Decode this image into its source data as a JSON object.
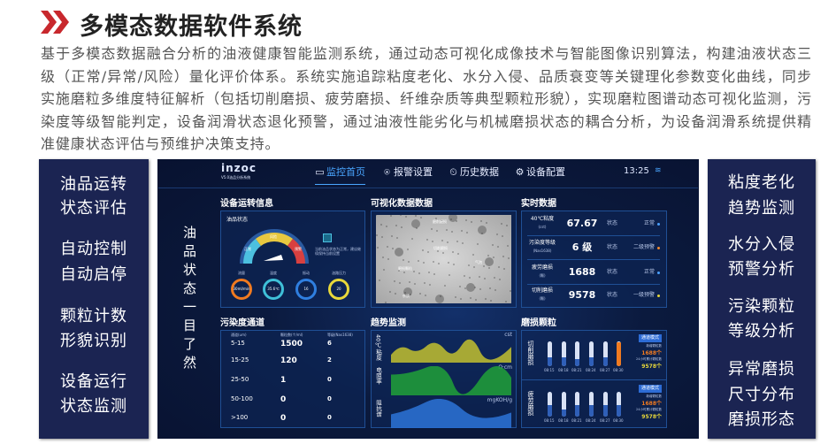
{
  "header": {
    "title": "多模态数据软件系统",
    "chevron_color": "#c8282d"
  },
  "description": "基于多模态数据融合分析的油液健康智能监测系统，通过动态可视化成像技术与智能图像识别算法，构建油液状态三级（正常/异常/风险）量化评价体系。系统实施追踪粘度老化、水分入侵、品质衰变等关键理化参数变化曲线，同步实施磨粒多维度特征解析（包括切削磨损、疲劳磨损、纤维杂质等典型颗粒形貌），实现磨粒图谱动态可视化监测，污染度等级智能判定，设备润滑状态退化预警，通过油液性能劣化与机械磨损状态的耦合分析，为设备润滑系统提供精准健康状态评估与预维护决策支持。",
  "left_features": [
    [
      "油品运转",
      "状态评估"
    ],
    [
      "自动控制",
      "自动启停"
    ],
    [
      "颗粒计数",
      "形貌识别"
    ],
    [
      "设备运行",
      "状态监测"
    ]
  ],
  "right_features": [
    [
      "粘度老化",
      "趋势监测"
    ],
    [
      "水分入侵",
      "预警分析"
    ],
    [
      "污染颗粒",
      "等级分析"
    ],
    [
      "异常磨损",
      "尺寸分布",
      "磨损形态"
    ]
  ],
  "dashboard": {
    "logo": "inzoc",
    "logo_sub": "V5.0油品分析系统",
    "nav": [
      "监控首页",
      "报警设置",
      "历史数据",
      "设备配置"
    ],
    "time": "13:25",
    "slogan": "油品状态一目了然",
    "equipment": {
      "title": "设备运转信息",
      "oil_status": "油品状态",
      "gauge_labels": [
        "正常",
        "风险",
        "预警"
      ],
      "note": "当前油品状态为正常，建议继续保持当前设置",
      "meters": [
        {
          "label": "流量",
          "value": "30ml/min",
          "color": "#f07a20"
        },
        {
          "label": "温度",
          "value": "35.6℃",
          "color": "#3fc0d8"
        },
        {
          "label": "振动",
          "value": "16",
          "color": "#2f7fe0"
        },
        {
          "label": "油路压力",
          "value": "20",
          "color": "#e8d83a"
        }
      ]
    },
    "visual": {
      "title": "可视化数据数据",
      "labels": [
        "磨削磨损",
        "切削磨损",
        "磨损颗粒",
        "气泡",
        "杂质"
      ]
    },
    "realtime": {
      "title": "实时数据",
      "rows": [
        {
          "label": "40℃粘度",
          "unit": "(cst)",
          "value": "67.67",
          "state_label": "状态",
          "state": "正常",
          "color": "#4aa0ff"
        },
        {
          "label": "污染度等级",
          "unit": "(Nas1638)",
          "value": "6 级",
          "state_label": "状态",
          "state": "二级预警",
          "color": "#f08a30"
        },
        {
          "label": "疲劳磨损",
          "unit": "(颗)",
          "value": "1688",
          "state_label": "状态",
          "state": "正常",
          "color": "#4aa0ff"
        },
        {
          "label": "切削磨损",
          "unit": "(颗)",
          "value": "9578",
          "state_label": "状态",
          "state": "一级预警",
          "color": "#e8d83a"
        }
      ]
    },
    "pollution": {
      "title": "污染度通道",
      "headers": [
        "通道(um)",
        "颗粒数(个/ml)",
        "等级(Nas1638)"
      ],
      "rows": [
        [
          "5-15",
          "1500",
          "6"
        ],
        [
          "15-25",
          "120",
          "2"
        ],
        [
          "25-50",
          "1",
          "0"
        ],
        [
          "50-100",
          "0",
          "0"
        ],
        [
          ">100",
          "0",
          "0"
        ]
      ]
    },
    "trend": {
      "title": "趋势监测",
      "charts": [
        {
          "label": "40℃粘度",
          "unit": "cst",
          "color": "#b8b832"
        },
        {
          "label": "电阻率",
          "unit": "Ω·cm",
          "color": "#1f9a3a"
        },
        {
          "label": "阻抗谱",
          "unit": "mgKOH/g",
          "color": "#2a6fd0"
        }
      ]
    },
    "wear": {
      "title": "磨损颗粒",
      "times": [
        "08:15",
        "08:18",
        "08:21",
        "08:24",
        "08:27",
        "08:30"
      ],
      "groups": [
        {
          "label": "切削磨损",
          "button": "通道模式",
          "count_label": "新增颗粒数",
          "count": "1688个",
          "total_label": "24小时累计颗粒数",
          "total": "9578个",
          "fills": [
            0.35,
            0.35,
            0.3,
            0.35,
            0.35,
            0.95
          ],
          "highlight": 5
        },
        {
          "label": "疲劳磨损",
          "button": "通道模式",
          "count_label": "新增颗粒数",
          "count": "1688个",
          "total_label": "24小时累计颗粒数",
          "total": "9578个",
          "fills": [
            0.45,
            0.3,
            0.45,
            0.45,
            0.45,
            0.45
          ],
          "highlight": -1
        }
      ]
    }
  }
}
